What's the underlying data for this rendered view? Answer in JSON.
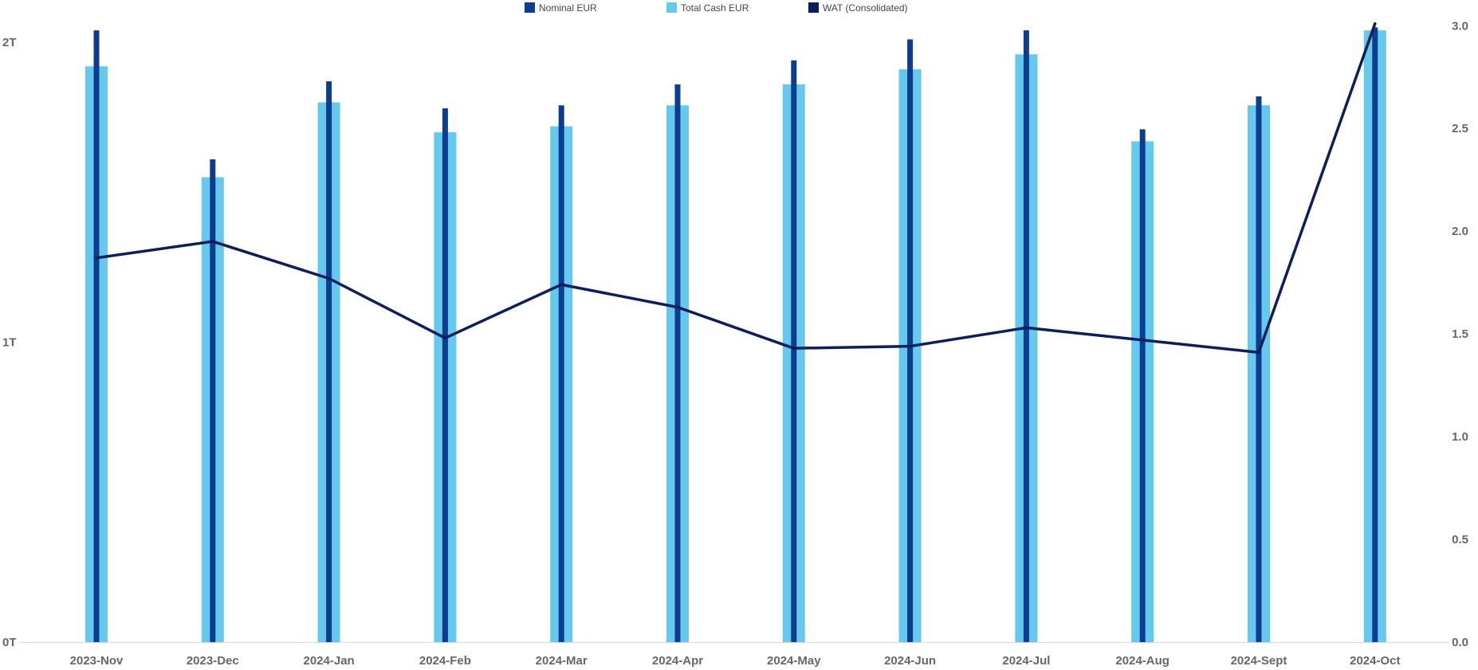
{
  "chart_data": {
    "type": "bar",
    "categories": [
      "2023-Nov",
      "2023-Dec",
      "2024-Jan",
      "2024-Feb",
      "2024-Mar",
      "2024-Apr",
      "2024-May",
      "2024-Jun",
      "2024-Jul",
      "2024-Aug",
      "2024-Sept",
      "2024-Oct"
    ],
    "series": [
      {
        "name": "Nominal EUR",
        "kind": "bar",
        "axis": "left",
        "color": "#0d3d8f",
        "values": [
          2.04,
          1.61,
          1.87,
          1.78,
          1.79,
          1.86,
          1.94,
          2.01,
          2.04,
          1.71,
          1.82,
          2.05
        ]
      },
      {
        "name": "Total Cash EUR",
        "kind": "bar",
        "axis": "left",
        "color": "#66c8ec",
        "values": [
          1.92,
          1.55,
          1.8,
          1.7,
          1.72,
          1.79,
          1.86,
          1.91,
          1.96,
          1.67,
          1.79,
          2.04
        ]
      },
      {
        "name": "WAT (Consolidated)",
        "kind": "line",
        "axis": "right",
        "color": "#0b1f5c",
        "values": [
          1.87,
          1.95,
          1.77,
          1.48,
          1.74,
          1.63,
          1.43,
          1.44,
          1.53,
          1.47,
          1.41,
          3.01
        ]
      }
    ],
    "y_left": {
      "ticks": [
        0,
        1,
        2
      ],
      "tick_labels": [
        "0T",
        "1T",
        "2T"
      ],
      "ylim": [
        0,
        2.035
      ]
    },
    "y_right": {
      "ticks": [
        0,
        0.5,
        1,
        1.5,
        2,
        2.5,
        3
      ],
      "tick_labels": [
        "0.0",
        "0.5",
        "1.0",
        "1.5",
        "2.0",
        "2.5",
        "3.0"
      ],
      "ylim": [
        0,
        2.97
      ]
    },
    "grid": false,
    "legend_position": "top-center",
    "title": "",
    "xlabel": "",
    "ylabel": ""
  }
}
